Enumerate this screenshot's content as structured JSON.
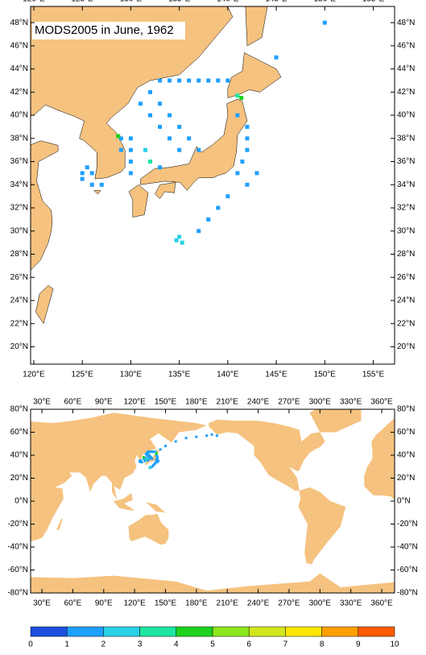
{
  "title": "MODS2005 in June, 1962",
  "regional_map": {
    "lon_range": [
      119.67,
      157.2
    ],
    "lat_range": [
      18.5,
      49.4
    ],
    "lon_ticks": [
      {
        "value": 120,
        "label": "120°E"
      },
      {
        "value": 125,
        "label": "125°E"
      },
      {
        "value": 130,
        "label": "130°E"
      },
      {
        "value": 135,
        "label": "135°E"
      },
      {
        "value": 140,
        "label": "140°E"
      },
      {
        "value": 145,
        "label": "145°E"
      },
      {
        "value": 150,
        "label": "150°E"
      },
      {
        "value": 155,
        "label": "155°E"
      }
    ],
    "lat_ticks": [
      {
        "value": 20,
        "label": "20°N"
      },
      {
        "value": 22,
        "label": "22°N"
      },
      {
        "value": 24,
        "label": "24°N"
      },
      {
        "value": 26,
        "label": "26°N"
      },
      {
        "value": 28,
        "label": "28°N"
      },
      {
        "value": 30,
        "label": "30°N"
      },
      {
        "value": 32,
        "label": "32°N"
      },
      {
        "value": 34,
        "label": "34°N"
      },
      {
        "value": 36,
        "label": "36°N"
      },
      {
        "value": 38,
        "label": "38°N"
      },
      {
        "value": 40,
        "label": "40°N"
      },
      {
        "value": 42,
        "label": "42°N"
      },
      {
        "value": 44,
        "label": "44°N"
      },
      {
        "value": 46,
        "label": "46°N"
      },
      {
        "value": 48,
        "label": "48°N"
      }
    ]
  },
  "global_map": {
    "lon_range": [
      19,
      372.5
    ],
    "lat_range": [
      -80,
      80
    ],
    "lon_ticks": [
      {
        "value": 30,
        "label": "30°E"
      },
      {
        "value": 60,
        "label": "60°E"
      },
      {
        "value": 90,
        "label": "90°E"
      },
      {
        "value": 120,
        "label": "120°E"
      },
      {
        "value": 150,
        "label": "150°E"
      },
      {
        "value": 180,
        "label": "180°E"
      },
      {
        "value": 210,
        "label": "210°E"
      },
      {
        "value": 240,
        "label": "240°E"
      },
      {
        "value": 270,
        "label": "270°E"
      },
      {
        "value": 300,
        "label": "300°E"
      },
      {
        "value": 330,
        "label": "330°E"
      },
      {
        "value": 360,
        "label": "360°E"
      }
    ],
    "lat_ticks": [
      {
        "value": 80,
        "label": "80°N"
      },
      {
        "value": 60,
        "label": "60°N"
      },
      {
        "value": 40,
        "label": "40°N"
      },
      {
        "value": 20,
        "label": "20°N"
      },
      {
        "value": 0,
        "label": "0°N"
      },
      {
        "value": -20,
        "label": "-20°N"
      },
      {
        "value": -40,
        "label": "-40°N"
      },
      {
        "value": -60,
        "label": "-60°N"
      },
      {
        "value": -80,
        "label": "-80°N"
      }
    ]
  },
  "observations": {
    "lon": [
      133,
      134,
      135,
      136,
      137,
      138,
      139,
      140,
      132,
      133,
      134,
      135,
      136,
      137,
      131,
      132,
      133,
      134,
      135,
      125,
      126,
      125,
      126,
      127,
      125.5,
      129,
      130,
      129,
      130,
      130,
      130,
      128.7,
      131.5,
      132,
      133,
      141,
      142,
      142,
      142,
      141.5,
      141,
      142,
      143,
      140,
      139,
      138,
      137,
      135,
      135.3,
      134.7,
      141,
      141.4,
      145,
      150,
      160,
      170,
      180,
      190,
      195,
      200
    ],
    "lat": [
      43,
      43,
      43,
      43,
      43,
      43,
      43,
      43,
      42,
      41,
      40,
      39,
      38,
      37,
      41,
      40,
      39,
      38,
      37,
      35,
      35,
      34.5,
      34,
      34,
      35.5,
      38,
      38,
      37,
      37,
      36,
      35,
      38.2,
      37,
      36,
      35.5,
      40,
      39,
      38,
      37,
      36,
      35,
      34,
      35,
      33,
      32,
      31,
      30,
      29.5,
      29,
      29.2,
      41.7,
      41.5,
      45,
      48,
      52,
      55,
      56,
      57,
      58,
      57
    ],
    "count": [
      1,
      1,
      1,
      1,
      1,
      1,
      1,
      1,
      1,
      1,
      1,
      1,
      1,
      1,
      1,
      1,
      1,
      1,
      1,
      1,
      1,
      1,
      1,
      1,
      1,
      1,
      1,
      1,
      1,
      1,
      1,
      4,
      2,
      3,
      1,
      1,
      1,
      1,
      1,
      1,
      1,
      1,
      1,
      1,
      1,
      1,
      1,
      2,
      2,
      2,
      3,
      4,
      1,
      1,
      1,
      1,
      1,
      1,
      1,
      1
    ]
  },
  "colorbar": {
    "ticks": [
      0,
      1,
      2,
      3,
      4,
      5,
      6,
      7,
      8,
      9,
      10
    ],
    "colors": [
      "#1e50dc",
      "#1ea0ff",
      "#28d2e6",
      "#1ee6a0",
      "#1ed21e",
      "#8ce61e",
      "#d2e61e",
      "#ffe600",
      "#ffa000",
      "#ff5a00"
    ]
  }
}
